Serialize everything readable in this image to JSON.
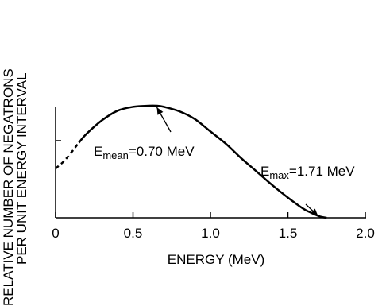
{
  "chart_data": {
    "type": "line",
    "xlabel": "ENERGY (MeV)",
    "ylabel_lines": [
      "RELATIVE NUMBER OF NEGATRONS",
      "PER UNIT ENERGY INTERVAL"
    ],
    "xlim": [
      0,
      2.0
    ],
    "x_ticks": [
      0,
      0.5,
      1.0,
      1.5,
      2.0
    ],
    "x_tick_labels": [
      "0",
      "0.5",
      "1.0",
      "1.5",
      "2.0"
    ],
    "grid": false,
    "series": [
      {
        "x": [
          0,
          0.05,
          0.1,
          0.15,
          0.2,
          0.3,
          0.4,
          0.5,
          0.6,
          0.65,
          0.7,
          0.8,
          0.9,
          1.0,
          1.1,
          1.2,
          1.3,
          1.4,
          1.5,
          1.6,
          1.65,
          1.71,
          1.75
        ],
        "y": [
          0.44,
          0.5,
          0.58,
          0.67,
          0.75,
          0.87,
          0.955,
          0.99,
          1.0,
          1.0,
          0.99,
          0.95,
          0.88,
          0.77,
          0.66,
          0.53,
          0.41,
          0.29,
          0.18,
          0.08,
          0.045,
          0.01,
          0.0
        ],
        "dashed_until_x": 0.15
      }
    ],
    "annotations": [
      {
        "prefix": "E",
        "subscript": "mean",
        "suffix": "=0.70 MeV",
        "target_x": 0.7
      },
      {
        "prefix": "E",
        "subscript": "max",
        "suffix": "=1.71 MeV",
        "target_x": 1.71
      }
    ]
  }
}
